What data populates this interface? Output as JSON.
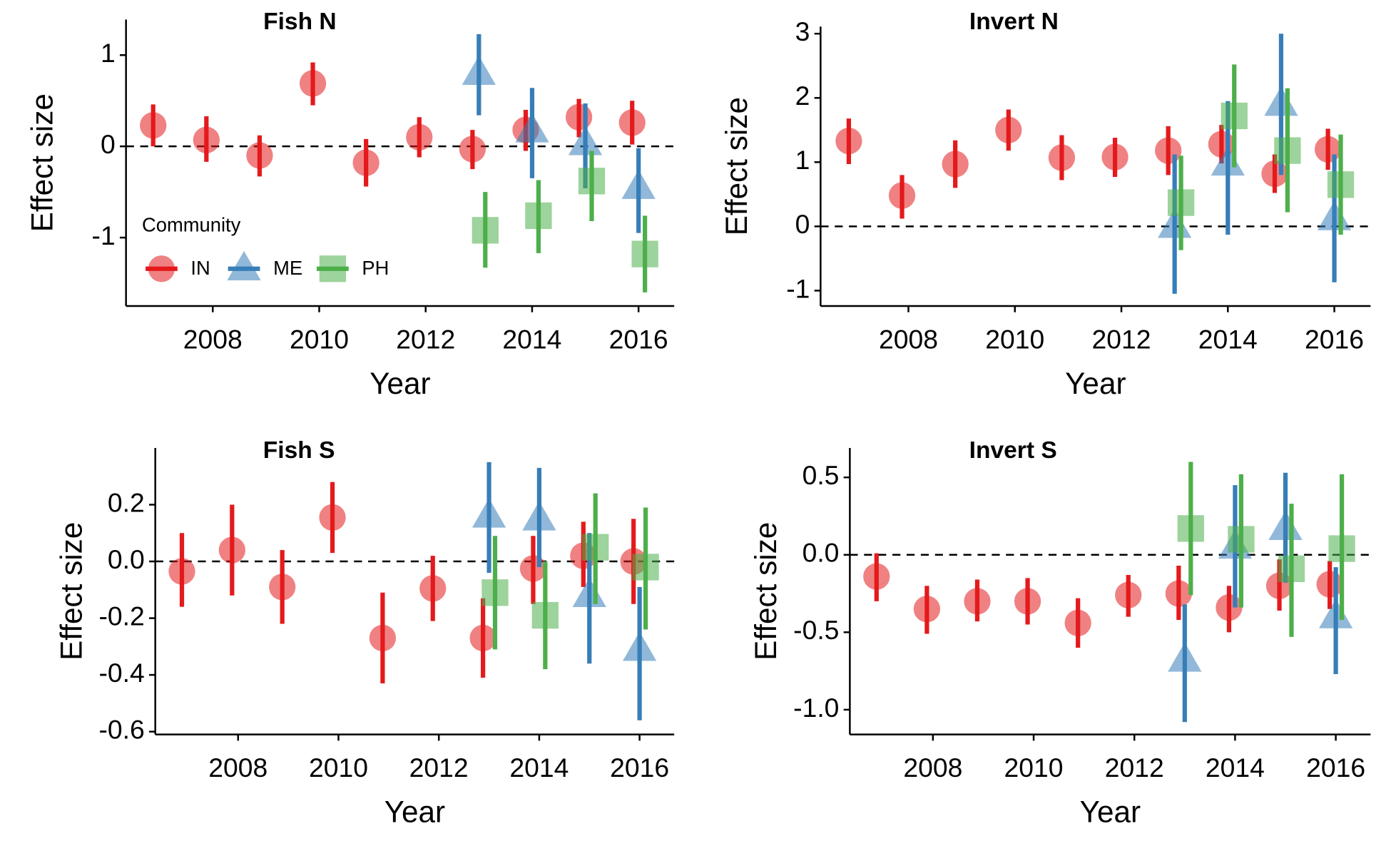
{
  "chart_data": [
    {
      "type": "scatter",
      "title": "Fish N",
      "x_label": "Year",
      "y_label": "Effect size",
      "xlim": [
        2006.37,
        2016.67
      ],
      "xticks": [
        2008,
        2010,
        2012,
        2014,
        2016
      ],
      "ylim": [
        -1.75,
        1.39
      ],
      "yticks": [
        -1,
        0,
        1
      ],
      "reference_line": 0,
      "legend": true,
      "legend_title": "Community",
      "series": [
        {
          "name": "IN",
          "color": "#e41a1c",
          "marker": "circle",
          "x": [
            2007,
            2008,
            2009,
            2010,
            2011,
            2012,
            2013,
            2014,
            2015,
            2016
          ],
          "values": [
            0.23,
            0.07,
            -0.1,
            0.69,
            -0.18,
            0.1,
            -0.03,
            0.18,
            0.32,
            0.26
          ],
          "upper": [
            0.46,
            0.33,
            0.12,
            0.92,
            0.08,
            0.32,
            0.18,
            0.4,
            0.52,
            0.5
          ],
          "lower": [
            0.0,
            -0.17,
            -0.33,
            0.45,
            -0.44,
            -0.12,
            -0.25,
            -0.05,
            0.1,
            0.02
          ]
        },
        {
          "name": "ME",
          "color": "#377eb8",
          "marker": "triangle",
          "x": [
            2013,
            2014,
            2015,
            2016
          ],
          "values": [
            0.8,
            0.17,
            0.03,
            -0.45
          ],
          "upper": [
            1.23,
            0.64,
            0.47,
            -0.02
          ],
          "lower": [
            0.34,
            -0.35,
            -0.46,
            -0.95
          ]
        },
        {
          "name": "PH",
          "color": "#4daf4a",
          "marker": "square",
          "x": [
            2013,
            2014,
            2015,
            2016
          ],
          "values": [
            -0.92,
            -0.76,
            -0.38,
            -1.18
          ],
          "upper": [
            -0.5,
            -0.37,
            -0.05,
            -0.76
          ],
          "lower": [
            -1.33,
            -1.17,
            -0.82,
            -1.6
          ]
        }
      ]
    },
    {
      "type": "scatter",
      "title": "Invert N",
      "x_label": "Year",
      "y_label": "Effect size",
      "xlim": [
        2006.35,
        2016.68
      ],
      "xticks": [
        2008,
        2010,
        2012,
        2014,
        2016
      ],
      "ylim": [
        -1.24,
        3.11
      ],
      "yticks": [
        -1,
        0,
        1,
        2,
        3
      ],
      "reference_line": 0,
      "legend": false,
      "series": [
        {
          "name": "IN",
          "color": "#e41a1c",
          "marker": "circle",
          "x": [
            2007,
            2008,
            2009,
            2010,
            2011,
            2012,
            2013,
            2014,
            2015,
            2016
          ],
          "values": [
            1.33,
            0.48,
            0.97,
            1.5,
            1.07,
            1.08,
            1.18,
            1.28,
            0.82,
            1.2
          ],
          "upper": [
            1.68,
            0.8,
            1.34,
            1.82,
            1.42,
            1.38,
            1.56,
            1.58,
            1.12,
            1.52
          ],
          "lower": [
            0.97,
            0.12,
            0.6,
            1.18,
            0.72,
            0.77,
            0.8,
            0.98,
            0.52,
            0.88
          ]
        },
        {
          "name": "ME",
          "color": "#377eb8",
          "marker": "triangle",
          "x": [
            2013,
            2014,
            2015,
            2016
          ],
          "values": [
            0.0,
            0.97,
            1.9,
            0.12
          ],
          "upper": [
            1.12,
            1.95,
            3.0,
            1.12
          ],
          "lower": [
            -1.05,
            -0.13,
            0.8,
            -0.87
          ]
        },
        {
          "name": "PH",
          "color": "#4daf4a",
          "marker": "square",
          "x": [
            2013,
            2014,
            2015,
            2016
          ],
          "values": [
            0.37,
            1.72,
            1.18,
            0.65
          ],
          "upper": [
            1.1,
            2.52,
            2.15,
            1.43
          ],
          "lower": [
            -0.37,
            0.92,
            0.22,
            -0.13
          ]
        }
      ]
    },
    {
      "type": "scatter",
      "title": "Fish S",
      "x_label": "Year",
      "y_label": "Effect size",
      "xlim": [
        2006.35,
        2016.69
      ],
      "xticks": [
        2008,
        2010,
        2012,
        2014,
        2016
      ],
      "ylim": [
        -0.61,
        0.4
      ],
      "yticks": [
        -0.6,
        -0.4,
        -0.2,
        {
          "value": 0,
          "label": "0.0"
        },
        0.2
      ],
      "reference_line": 0,
      "legend": false,
      "series": [
        {
          "name": "IN",
          "color": "#e41a1c",
          "marker": "circle",
          "x": [
            2007,
            2008,
            2009,
            2010,
            2011,
            2012,
            2013,
            2014,
            2015,
            2016
          ],
          "values": [
            -0.035,
            0.04,
            -0.09,
            0.155,
            -0.27,
            -0.095,
            -0.27,
            -0.025,
            0.02,
            0.0
          ],
          "upper": [
            0.1,
            0.2,
            0.04,
            0.28,
            -0.11,
            0.02,
            -0.13,
            0.09,
            0.14,
            0.15
          ],
          "lower": [
            -0.16,
            -0.12,
            -0.22,
            0.03,
            -0.43,
            -0.21,
            -0.41,
            -0.15,
            -0.09,
            -0.15
          ]
        },
        {
          "name": "ME",
          "color": "#377eb8",
          "marker": "triangle",
          "x": [
            2013,
            2014,
            2015,
            2016
          ],
          "values": [
            0.16,
            0.15,
            -0.12,
            -0.31
          ],
          "upper": [
            0.35,
            0.33,
            0.1,
            -0.09
          ],
          "lower": [
            -0.04,
            -0.02,
            -0.36,
            -0.56
          ]
        },
        {
          "name": "PH",
          "color": "#4daf4a",
          "marker": "square",
          "x": [
            2013,
            2014,
            2015,
            2016
          ],
          "values": [
            -0.11,
            -0.19,
            0.05,
            -0.02
          ],
          "upper": [
            0.09,
            0.0,
            0.24,
            0.19
          ],
          "lower": [
            -0.31,
            -0.38,
            -0.15,
            -0.24
          ]
        }
      ]
    },
    {
      "type": "scatter",
      "title": "Invert S",
      "x_label": "Year",
      "y_label": "Effect size",
      "xlim": [
        2006.35,
        2016.69
      ],
      "xticks": [
        2008,
        2010,
        2012,
        2014,
        2016
      ],
      "ylim": [
        -1.16,
        0.69
      ],
      "yticks": [
        {
          "value": -1,
          "label": "-1.0"
        },
        -0.5,
        {
          "value": 0,
          "label": "0.0"
        },
        0.5
      ],
      "reference_line": 0,
      "legend": false,
      "series": [
        {
          "name": "IN",
          "color": "#e41a1c",
          "marker": "circle",
          "x": [
            2007,
            2008,
            2009,
            2010,
            2011,
            2012,
            2013,
            2014,
            2015,
            2016
          ],
          "values": [
            -0.14,
            -0.35,
            -0.3,
            -0.3,
            -0.44,
            -0.26,
            -0.25,
            -0.34,
            -0.2,
            -0.19
          ],
          "upper": [
            0.01,
            -0.2,
            -0.16,
            -0.15,
            -0.28,
            -0.13,
            -0.07,
            -0.2,
            -0.03,
            -0.04
          ],
          "lower": [
            -0.3,
            -0.51,
            -0.43,
            -0.45,
            -0.6,
            -0.4,
            -0.42,
            -0.5,
            -0.36,
            -0.35
          ]
        },
        {
          "name": "ME",
          "color": "#377eb8",
          "marker": "triangle",
          "x": [
            2013,
            2014,
            2015,
            2016
          ],
          "values": [
            -0.68,
            0.05,
            0.17,
            -0.4
          ],
          "upper": [
            -0.32,
            0.45,
            0.53,
            -0.08
          ],
          "lower": [
            -1.08,
            -0.34,
            -0.18,
            -0.77
          ]
        },
        {
          "name": "PH",
          "color": "#4daf4a",
          "marker": "square",
          "x": [
            2013,
            2014,
            2015,
            2016
          ],
          "values": [
            0.17,
            0.1,
            -0.09,
            0.04
          ],
          "upper": [
            0.6,
            0.52,
            0.33,
            0.52
          ],
          "lower": [
            -0.26,
            -0.34,
            -0.53,
            -0.42
          ]
        }
      ]
    }
  ]
}
